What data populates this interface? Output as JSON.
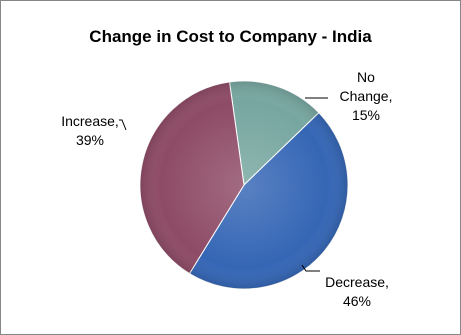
{
  "chart_data": {
    "type": "pie",
    "title": "Change in Cost to Company - India",
    "slices": [
      {
        "name": "No Change",
        "label_lines": [
          "No",
          "Change,",
          "15%"
        ],
        "value": 15,
        "color": "#77A6A0"
      },
      {
        "name": "Decrease",
        "label_lines": [
          "Decrease,",
          "46%"
        ],
        "value": 46,
        "color": "#3566B5"
      },
      {
        "name": "Increase",
        "label_lines": [
          "Increase,",
          "39%"
        ],
        "value": 39,
        "color": "#8E4B66"
      }
    ],
    "legend": "none"
  }
}
